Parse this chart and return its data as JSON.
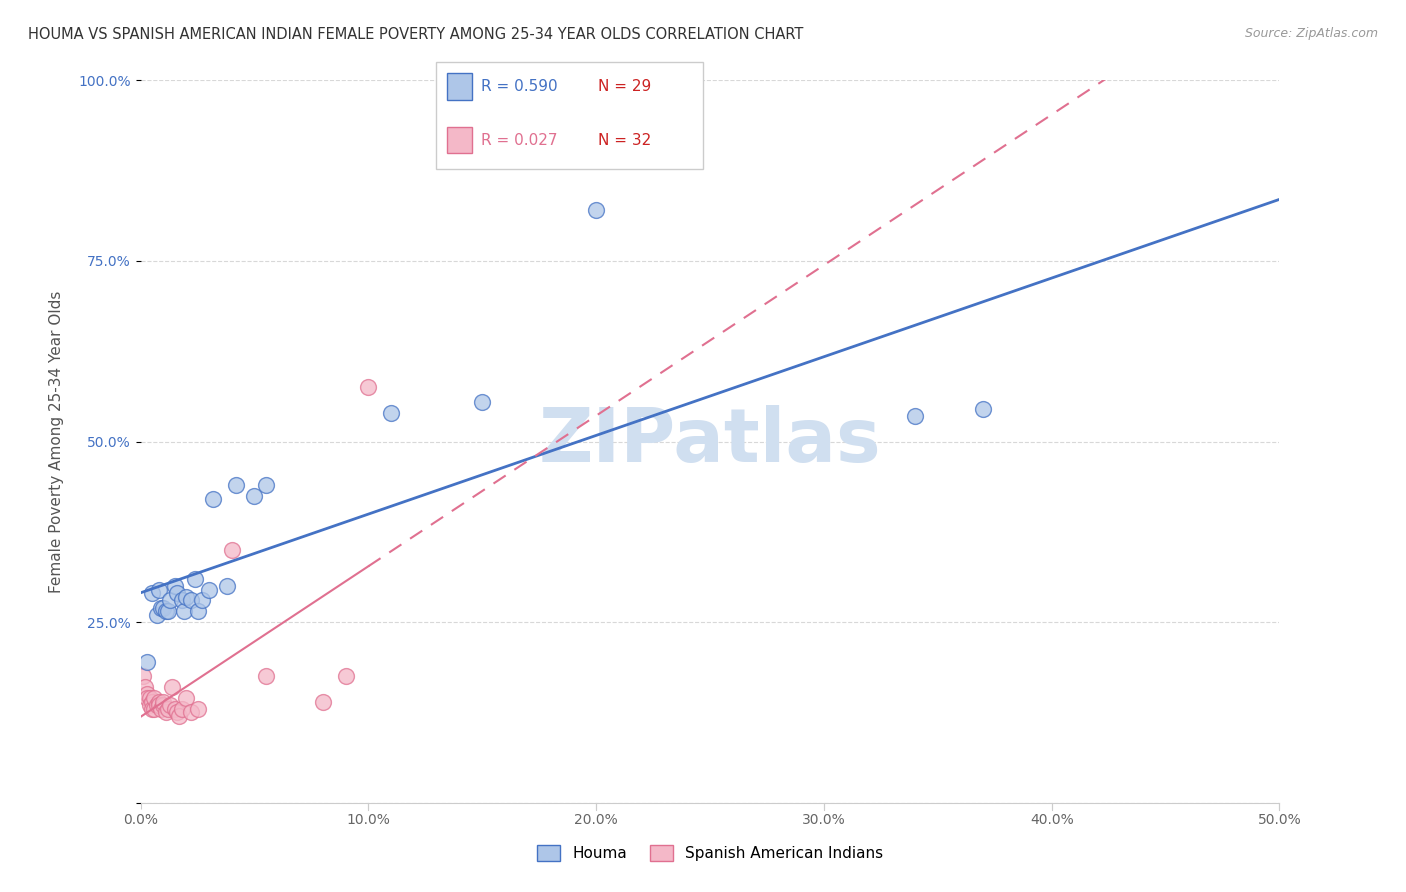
{
  "title": "HOUMA VS SPANISH AMERICAN INDIAN FEMALE POVERTY AMONG 25-34 YEAR OLDS CORRELATION CHART",
  "source": "Source: ZipAtlas.com",
  "ylabel": "Female Poverty Among 25-34 Year Olds",
  "xlim": [
    0,
    0.5
  ],
  "ylim": [
    0,
    1.0
  ],
  "xticks": [
    0.0,
    0.1,
    0.2,
    0.3,
    0.4,
    0.5
  ],
  "yticks": [
    0.0,
    0.25,
    0.5,
    0.75,
    1.0
  ],
  "xticklabels": [
    "0.0%",
    "10.0%",
    "20.0%",
    "30.0%",
    "40.0%",
    "50.0%"
  ],
  "yticklabels": [
    "",
    "25.0%",
    "50.0%",
    "75.0%",
    "100.0%"
  ],
  "houma_R": "0.590",
  "houma_N": "29",
  "spanish_R": "0.027",
  "spanish_N": "32",
  "houma_color": "#aec6e8",
  "houma_line_color": "#4472c4",
  "spanish_color": "#f4b8c8",
  "spanish_line_color": "#e07090",
  "houma_x": [
    0.003,
    0.005,
    0.007,
    0.008,
    0.009,
    0.01,
    0.011,
    0.012,
    0.013,
    0.015,
    0.016,
    0.018,
    0.019,
    0.02,
    0.022,
    0.024,
    0.025,
    0.027,
    0.03,
    0.032,
    0.038,
    0.042,
    0.05,
    0.055,
    0.11,
    0.15,
    0.2,
    0.34,
    0.37
  ],
  "houma_y": [
    0.195,
    0.29,
    0.26,
    0.295,
    0.27,
    0.27,
    0.265,
    0.265,
    0.28,
    0.3,
    0.29,
    0.28,
    0.265,
    0.285,
    0.28,
    0.31,
    0.265,
    0.28,
    0.295,
    0.42,
    0.3,
    0.44,
    0.425,
    0.44,
    0.54,
    0.555,
    0.82,
    0.535,
    0.545
  ],
  "spanish_x": [
    0.001,
    0.002,
    0.003,
    0.003,
    0.004,
    0.004,
    0.005,
    0.005,
    0.006,
    0.006,
    0.007,
    0.008,
    0.008,
    0.009,
    0.01,
    0.01,
    0.011,
    0.012,
    0.013,
    0.014,
    0.015,
    0.016,
    0.017,
    0.018,
    0.02,
    0.022,
    0.025,
    0.04,
    0.055,
    0.08,
    0.09,
    0.1
  ],
  "spanish_y": [
    0.175,
    0.16,
    0.15,
    0.145,
    0.145,
    0.135,
    0.14,
    0.13,
    0.13,
    0.145,
    0.135,
    0.14,
    0.135,
    0.13,
    0.135,
    0.14,
    0.125,
    0.13,
    0.135,
    0.16,
    0.13,
    0.125,
    0.12,
    0.13,
    0.145,
    0.125,
    0.13,
    0.35,
    0.175,
    0.14,
    0.175,
    0.575
  ],
  "background_color": "#ffffff",
  "grid_color": "#d8d8d8",
  "watermark_text": "ZIPatlas",
  "watermark_color": "#d0dff0"
}
